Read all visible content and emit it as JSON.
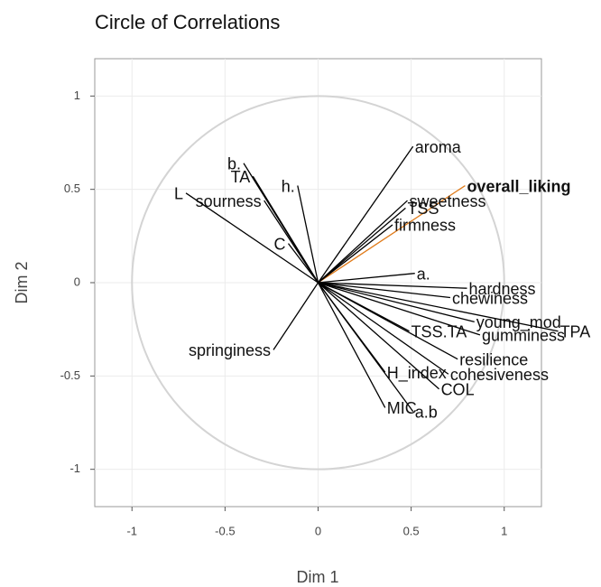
{
  "chart_data": {
    "type": "correlation_circle",
    "title": "Circle of Correlations",
    "x_label": "Dim 1",
    "y_label": "Dim 2",
    "xlim": [
      -1.2,
      1.2
    ],
    "ylim": [
      -1.2,
      1.2
    ],
    "xticks": [
      -1,
      -0.5,
      0,
      0.5,
      1
    ],
    "yticks": [
      -1,
      -0.5,
      0,
      0.5,
      1
    ],
    "grid": true,
    "circle_color": "#d4d4d4",
    "points": [
      {
        "name": "aroma",
        "x": 0.51,
        "y": 0.73,
        "color": "#000000"
      },
      {
        "name": "overall_liking",
        "x": 0.79,
        "y": 0.52,
        "color": "#e07b1a"
      },
      {
        "name": "sweetness",
        "x": 0.48,
        "y": 0.44,
        "color": "#000000"
      },
      {
        "name": "TSS",
        "x": 0.47,
        "y": 0.4,
        "color": "#000000"
      },
      {
        "name": "firmness",
        "x": 0.4,
        "y": 0.31,
        "color": "#000000"
      },
      {
        "name": "a.",
        "x": 0.52,
        "y": 0.05,
        "color": "#000000"
      },
      {
        "name": "hardness",
        "x": 0.8,
        "y": -0.03,
        "color": "#000000"
      },
      {
        "name": "chewiness",
        "x": 0.71,
        "y": -0.08,
        "color": "#000000"
      },
      {
        "name": "young_mod",
        "x": 0.84,
        "y": -0.21,
        "color": "#000000"
      },
      {
        "name": "TPA",
        "x": 1.29,
        "y": -0.26,
        "color": "#000000"
      },
      {
        "name": "gumminess",
        "x": 0.87,
        "y": -0.28,
        "color": "#000000"
      },
      {
        "name": "TSS.TA",
        "x": 0.49,
        "y": -0.26,
        "color": "#000000"
      },
      {
        "name": "resilience",
        "x": 0.75,
        "y": -0.41,
        "color": "#000000"
      },
      {
        "name": "cohesiveness",
        "x": 0.7,
        "y": -0.49,
        "color": "#000000"
      },
      {
        "name": "COL",
        "x": 0.65,
        "y": -0.57,
        "color": "#000000"
      },
      {
        "name": "H_index",
        "x": 0.36,
        "y": -0.48,
        "color": "#000000"
      },
      {
        "name": "a.b",
        "x": 0.51,
        "y": -0.69,
        "color": "#000000"
      },
      {
        "name": "MIC",
        "x": 0.36,
        "y": -0.67,
        "color": "#000000"
      },
      {
        "name": "springiness",
        "x": -0.24,
        "y": -0.36,
        "color": "#000000"
      },
      {
        "name": "C",
        "x": -0.16,
        "y": 0.21,
        "color": "#000000"
      },
      {
        "name": "sourness",
        "x": -0.29,
        "y": 0.44,
        "color": "#000000"
      },
      {
        "name": "L",
        "x": -0.71,
        "y": 0.48,
        "color": "#000000"
      },
      {
        "name": "b.",
        "x": -0.4,
        "y": 0.64,
        "color": "#000000"
      },
      {
        "name": "TA",
        "x": -0.35,
        "y": 0.57,
        "color": "#000000"
      },
      {
        "name": "h.",
        "x": -0.11,
        "y": 0.52,
        "color": "#000000"
      }
    ]
  }
}
